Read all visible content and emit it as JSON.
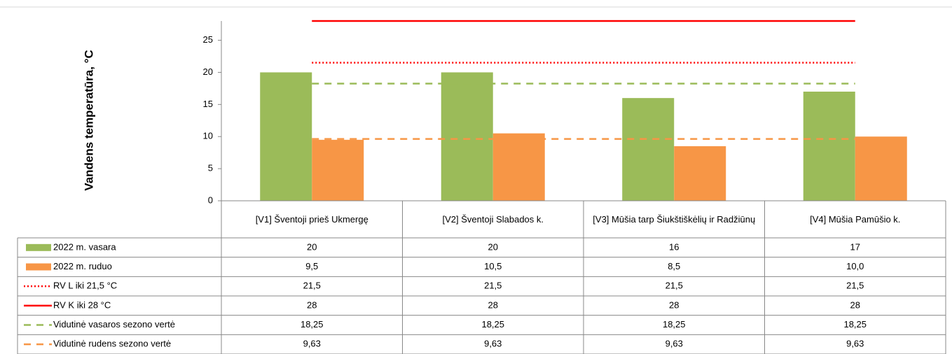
{
  "chart_data": {
    "type": "bar",
    "y_label": "Vandens temperatūra, °C",
    "categories": [
      "[V1] Šventoji prieš Ukmergę",
      "[V2] Šventoji Slabados k.",
      "[V3] Mūšia tarp Šiukštiškėlių ir Radžiūnų",
      "[V4] Mūšia Pamūšio k."
    ],
    "series": [
      {
        "name": "2022 m. vasara",
        "type": "bar",
        "color": "#9bbb59",
        "values": [
          20,
          20,
          16,
          17
        ]
      },
      {
        "name": "2022 m. ruduo",
        "type": "bar",
        "color": "#f79646",
        "values": [
          9.5,
          10.5,
          8.5,
          10.0
        ],
        "value_labels": [
          "9,5",
          "10,5",
          "8,5",
          "10,0"
        ]
      },
      {
        "name": "RV L iki 21,5 °C",
        "type": "line",
        "dash": "dotted",
        "color": "#ff0000",
        "values": [
          21.5,
          21.5,
          21.5,
          21.5
        ],
        "value_labels": [
          "21,5",
          "21,5",
          "21,5",
          "21,5"
        ]
      },
      {
        "name": "RV K iki 28 °C",
        "type": "line",
        "dash": "solid",
        "color": "#ff0000",
        "values": [
          28,
          28,
          28,
          28
        ]
      },
      {
        "name": "Vidutinė vasaros sezono vertė",
        "type": "line",
        "dash": "dashed",
        "color": "#9bbb59",
        "values": [
          18.25,
          18.25,
          18.25,
          18.25
        ],
        "value_labels": [
          "18,25",
          "18,25",
          "18,25",
          "18,25"
        ]
      },
      {
        "name": "Vidutinė rudens sezono vertė",
        "type": "line",
        "dash": "dashed",
        "color": "#f79646",
        "values": [
          9.63,
          9.63,
          9.63,
          9.63
        ],
        "value_labels": [
          "9,63",
          "9,63",
          "9,63",
          "9,63"
        ]
      }
    ],
    "ylim": [
      0,
      28
    ],
    "yticks": [
      0,
      5,
      10,
      15,
      20,
      25
    ],
    "data_table": true
  }
}
